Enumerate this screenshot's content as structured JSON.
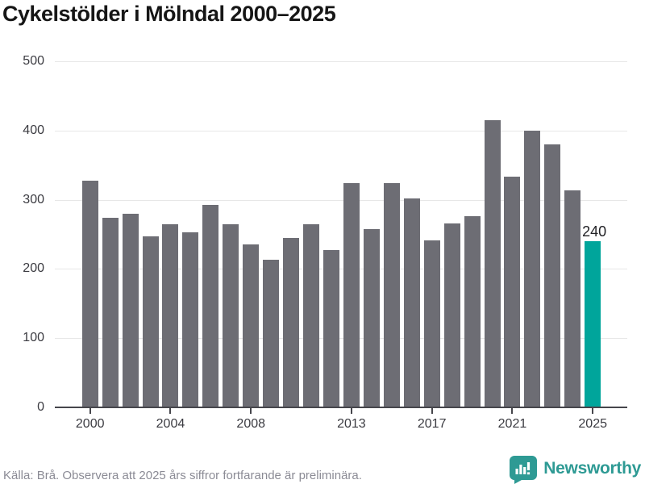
{
  "title": "Cykelstölder i Mölndal 2000–2025",
  "chart_data": {
    "type": "bar",
    "title": "Cykelstölder i Mölndal 2000–2025",
    "categories": [
      2000,
      2001,
      2002,
      2003,
      2004,
      2005,
      2006,
      2007,
      2008,
      2009,
      2010,
      2011,
      2012,
      2013,
      2014,
      2015,
      2016,
      2017,
      2018,
      2019,
      2020,
      2021,
      2022,
      2023,
      2024,
      2025
    ],
    "values": [
      328,
      274,
      280,
      247,
      265,
      253,
      293,
      265,
      236,
      213,
      245,
      265,
      227,
      324,
      258,
      324,
      302,
      241,
      266,
      276,
      415,
      333,
      400,
      380,
      314,
      240
    ],
    "highlight_index": 25,
    "highlight_value_label": "240",
    "xlabel": "",
    "ylabel": "",
    "ylim": [
      0,
      500
    ],
    "yticks": [
      0,
      100,
      200,
      300,
      400,
      500
    ],
    "xtick_labels": [
      "2000",
      "2004",
      "2008",
      "2013",
      "2017",
      "2021",
      "2025"
    ],
    "xtick_indices": [
      0,
      4,
      8,
      13,
      17,
      21,
      25
    ],
    "grid": "horizontal-only",
    "legend": "none",
    "bar_color": "#6d6d74",
    "highlight_color": "#00a59b"
  },
  "footer": {
    "source": "Källa: Brå. Observera att 2025 års siffror fortfarande är preliminära."
  },
  "branding": {
    "name": "Newsworthy",
    "icon": "newsworthy-speech-bubble-chart-icon",
    "color": "#2e9a94"
  }
}
